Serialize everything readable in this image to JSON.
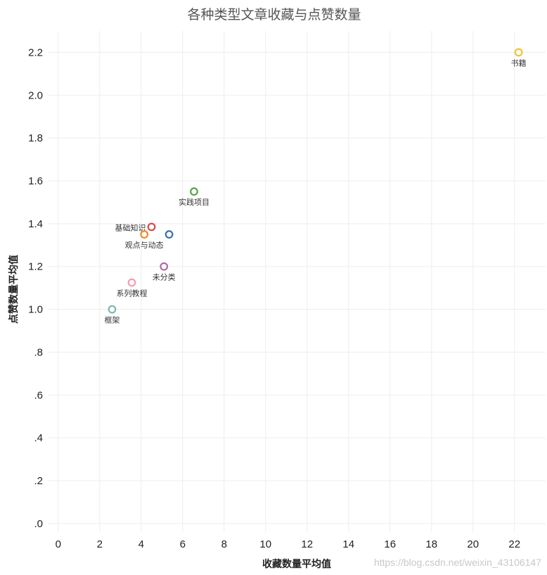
{
  "chart_data": {
    "type": "scatter",
    "title": "各种类型文章收藏与点赞数量",
    "xlabel": "收藏数量平均值",
    "ylabel": "点赞数量平均值",
    "xlim": [
      -0.5,
      23.5
    ],
    "ylim": [
      -0.04,
      2.3
    ],
    "x_ticks": [
      0,
      2,
      4,
      6,
      8,
      10,
      12,
      14,
      16,
      18,
      20,
      22
    ],
    "x_tick_labels": [
      "0",
      "2",
      "4",
      "6",
      "8",
      "10",
      "12",
      "14",
      "16",
      "18",
      "20",
      "22"
    ],
    "y_ticks": [
      0,
      0.2,
      0.4,
      0.6,
      0.8,
      1.0,
      1.2,
      1.4,
      1.6,
      1.8,
      2.0,
      2.2
    ],
    "y_tick_labels": [
      ".0",
      ".2",
      ".4",
      ".6",
      ".8",
      "1.0",
      "1.2",
      "1.4",
      "1.6",
      "1.8",
      "2.0",
      "2.2"
    ],
    "grid": true,
    "points": [
      {
        "name": "书籍",
        "x": 22.2,
        "y": 2.2,
        "color": "#f1c232",
        "label_pos": "below"
      },
      {
        "name": "实践项目",
        "x": 6.55,
        "y": 1.55,
        "color": "#5aa24c",
        "label_pos": "below"
      },
      {
        "name": "基础知识",
        "x": 4.5,
        "y": 1.385,
        "color": "#d9484f",
        "label_pos": "left"
      },
      {
        "name": "",
        "x": 5.35,
        "y": 1.35,
        "color": "#3e6fb0",
        "label_pos": "none"
      },
      {
        "name": "观点与动态",
        "x": 4.15,
        "y": 1.35,
        "color": "#ee8a2a",
        "label_pos": "below"
      },
      {
        "name": "未分类",
        "x": 5.1,
        "y": 1.2,
        "color": "#b36b9c",
        "label_pos": "below"
      },
      {
        "name": "系列教程",
        "x": 3.55,
        "y": 1.125,
        "color": "#f49cb1",
        "label_pos": "below"
      },
      {
        "name": "框架",
        "x": 2.6,
        "y": 1.0,
        "color": "#7fb8b1",
        "label_pos": "below"
      }
    ]
  },
  "watermark": "https://blog.csdn.net/weixin_43106147"
}
